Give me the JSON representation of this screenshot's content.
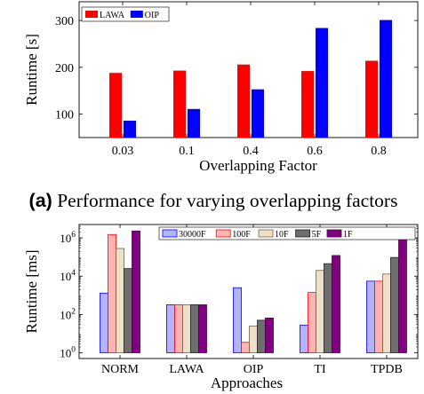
{
  "chart_data": [
    {
      "type": "bar",
      "ylabel": "Runtime [s]",
      "xlabel": "Overlapping Factor",
      "categories": [
        "0.03",
        "0.1",
        "0.4",
        "0.6",
        "0.8"
      ],
      "yticks": [
        "100",
        "200",
        "300"
      ],
      "ylim": [
        50,
        340
      ],
      "legend_position": "top-left",
      "series": [
        {
          "name": "LAWA",
          "values": [
            188,
            193,
            206,
            192,
            214
          ],
          "color": "#ff0000"
        },
        {
          "name": "OIP",
          "values": [
            86,
            111,
            153,
            284,
            301
          ],
          "color": "#0000ff"
        }
      ]
    },
    {
      "type": "bar",
      "ylabel": "Runtime [ms]",
      "xlabel": "Approaches",
      "yscale": "log",
      "categories": [
        "NORM",
        "LAWA",
        "OIP",
        "TI",
        "TPDB"
      ],
      "yticks": [
        "10^0",
        "10^2",
        "10^4",
        "10^6"
      ],
      "ylim": [
        0.5,
        5000000
      ],
      "legend_position": "top-right",
      "series": [
        {
          "name": "30000F",
          "values": [
            1300,
            320,
            2500,
            28,
            5500
          ],
          "fill": "#b3b3ff",
          "stroke": "#0000ff"
        },
        {
          "name": "100F",
          "values": [
            1500000,
            320,
            3.5,
            1400,
            5500
          ],
          "fill": "#ffb3b3",
          "stroke": "#ff0000"
        },
        {
          "name": "10F",
          "values": [
            280000,
            320,
            25,
            20000,
            13000
          ],
          "fill": "#ede0c8",
          "stroke": "#7a6040"
        },
        {
          "name": "5F",
          "values": [
            25000,
            320,
            50,
            45000,
            95000
          ],
          "fill": "#6e6e6e",
          "stroke": "#202020"
        },
        {
          "name": "1F",
          "values": [
            2300000,
            320,
            65,
            120000,
            850000
          ],
          "fill": "#80007f",
          "stroke": "#4a004a"
        }
      ]
    }
  ],
  "caption": {
    "label": "(a)",
    "text": "Performance for varying overlapping factors"
  }
}
